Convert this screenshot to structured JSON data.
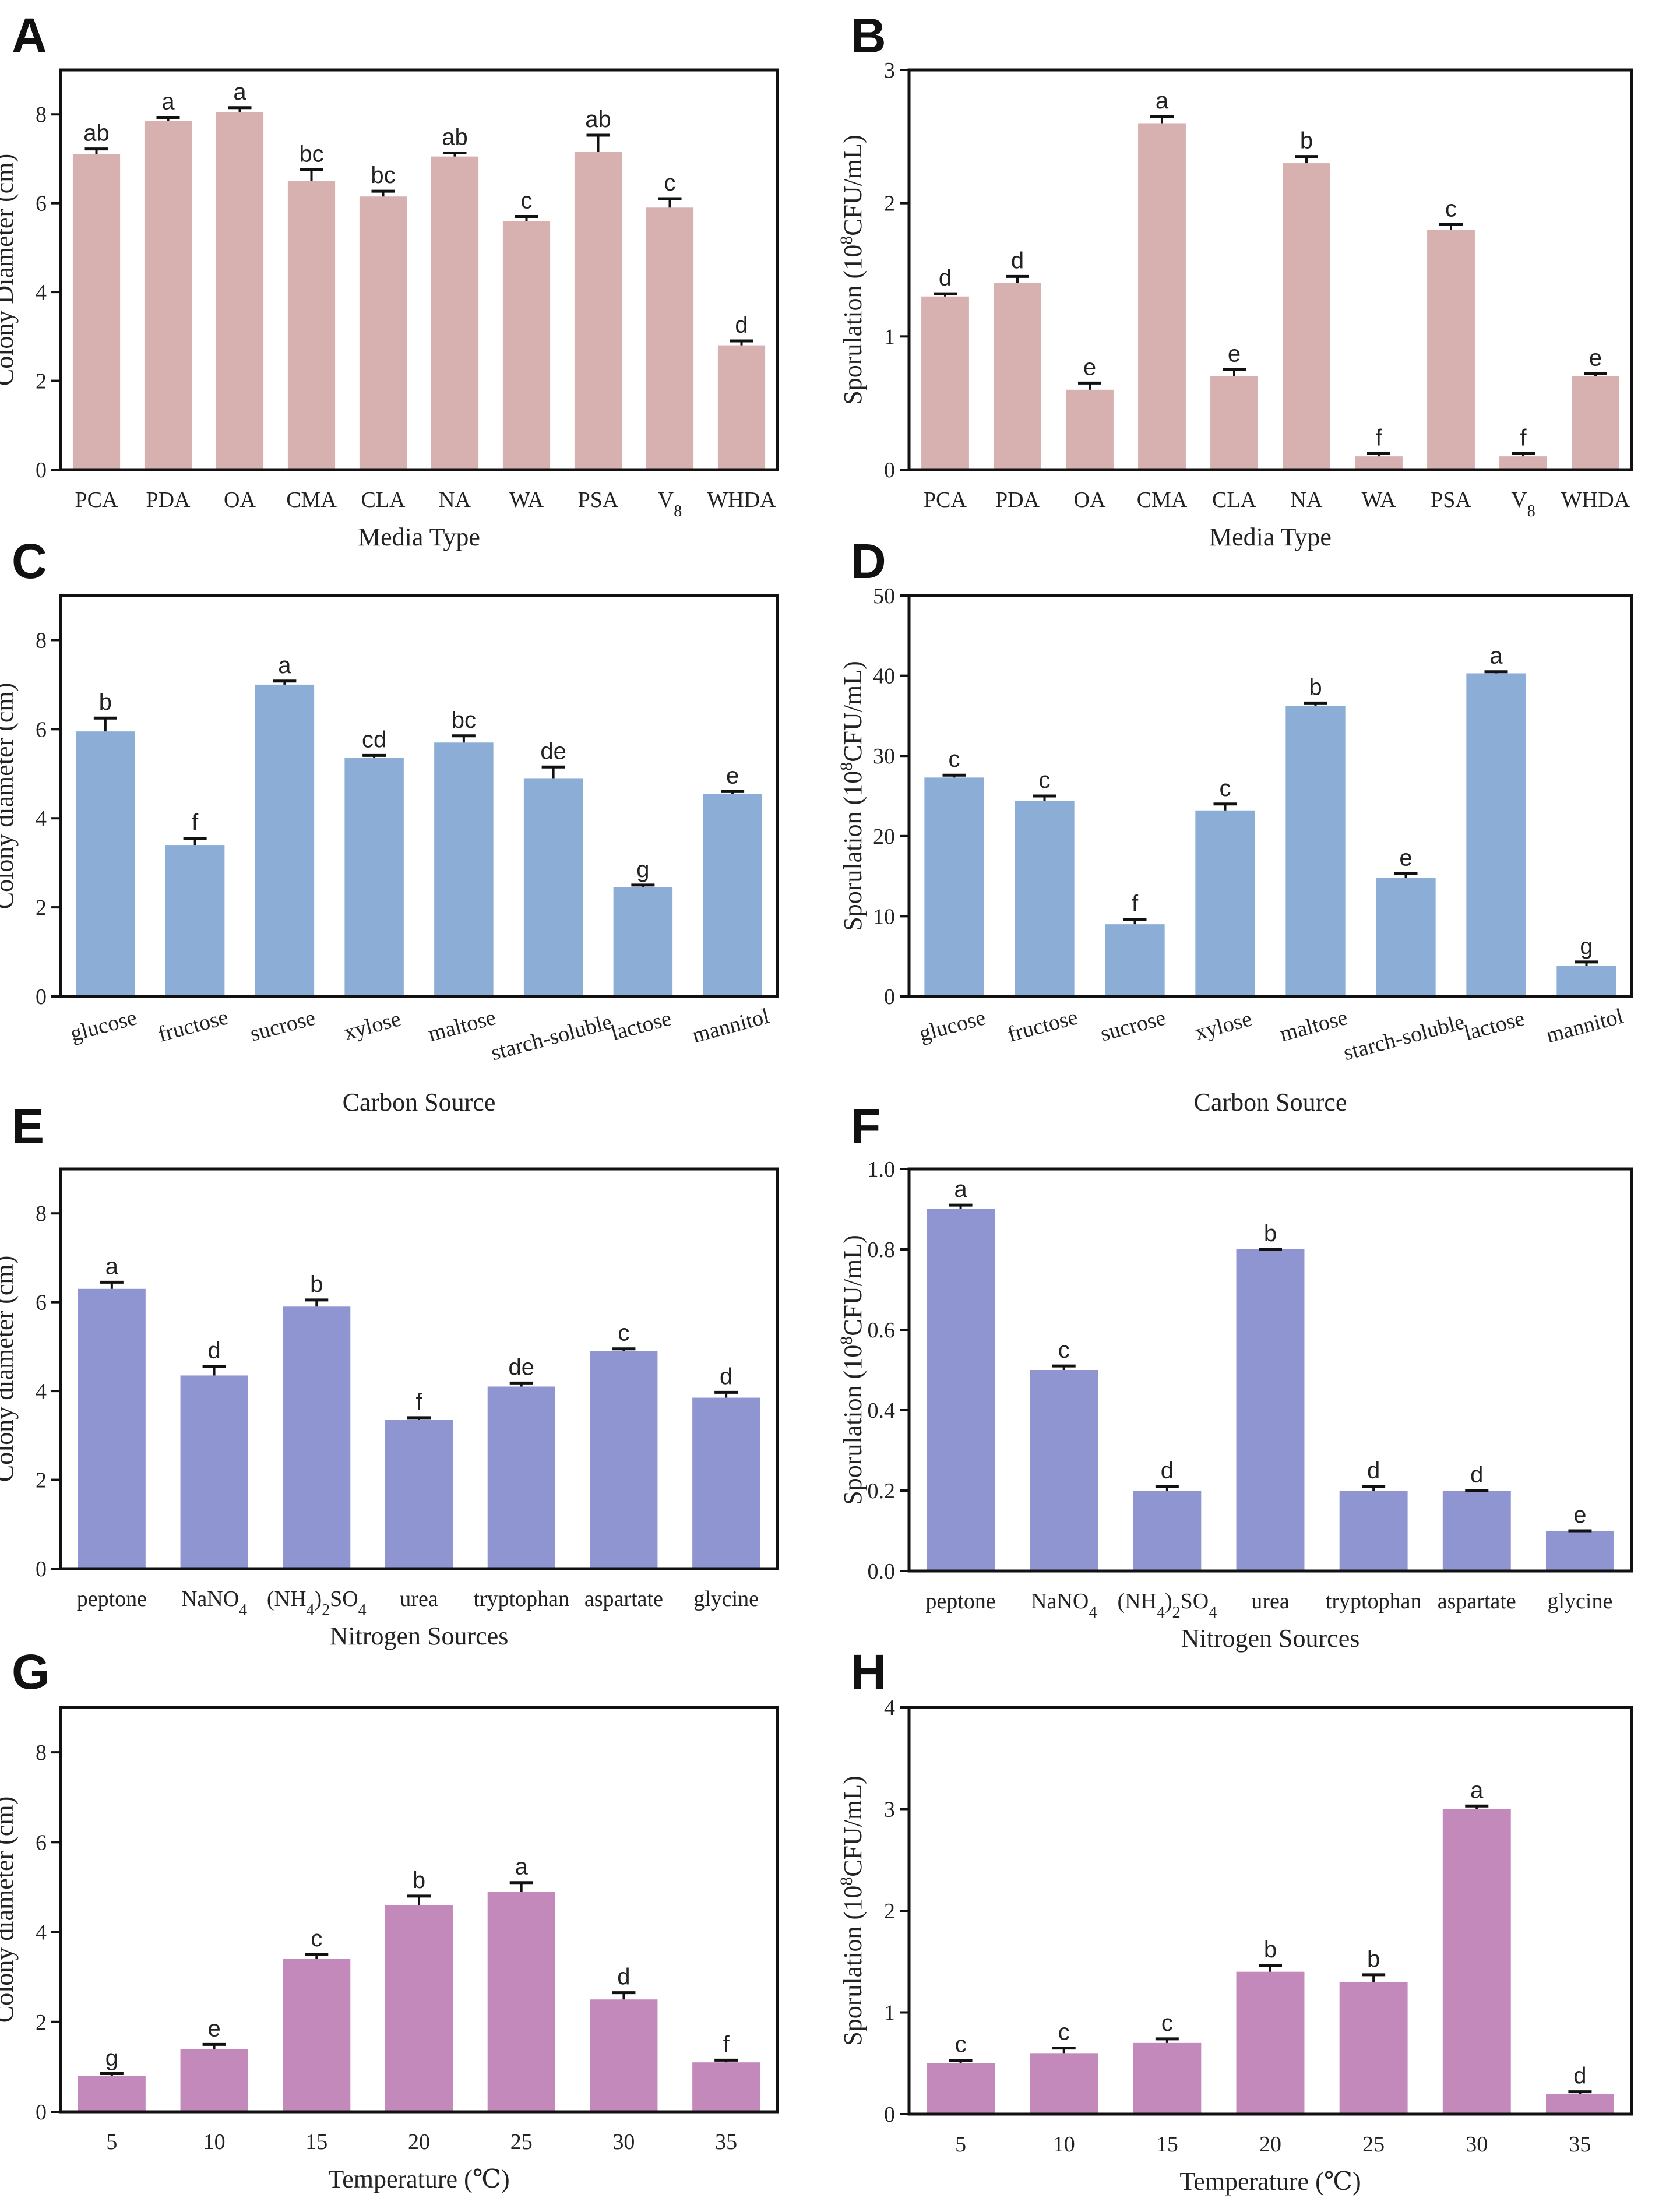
{
  "chart_data": [
    {
      "panel": "A",
      "type": "bar",
      "categories": [
        "PCA",
        "PDA",
        "OA",
        "CMA",
        "CLA",
        "NA",
        "WA",
        "PSA",
        "V8",
        "WHDA"
      ],
      "values": [
        7.1,
        7.85,
        8.05,
        6.5,
        6.15,
        7.05,
        5.6,
        7.15,
        5.9,
        2.8
      ],
      "errors": [
        0.12,
        0.08,
        0.1,
        0.25,
        0.12,
        0.08,
        0.1,
        0.38,
        0.2,
        0.1
      ],
      "letters": [
        "ab",
        "a",
        "a",
        "bc",
        "bc",
        "ab",
        "c",
        "ab",
        "c",
        "d"
      ],
      "xlabel": "Media Type",
      "ylabel": [
        "Colony Diameter (cm)"
      ],
      "ylim": [
        0,
        9
      ],
      "yticks": [
        0,
        2,
        4,
        6,
        8
      ],
      "color": "#d7b0b0",
      "rotate": false
    },
    {
      "panel": "B",
      "type": "bar",
      "categories": [
        "PCA",
        "PDA",
        "OA",
        "CMA",
        "CLA",
        "NA",
        "WA",
        "PSA",
        "V8",
        "WHDA"
      ],
      "values": [
        1.3,
        1.4,
        0.6,
        2.6,
        0.7,
        2.3,
        0.1,
        1.8,
        0.1,
        0.7
      ],
      "errors": [
        0.02,
        0.05,
        0.05,
        0.05,
        0.05,
        0.05,
        0.02,
        0.04,
        0.02,
        0.02
      ],
      "letters": [
        "d",
        "d",
        "e",
        "a",
        "e",
        "b",
        "f",
        "c",
        "f",
        "e"
      ],
      "xlabel": "Media Type",
      "ylabel": [
        "Sporulation  (10",
        "8",
        "CFU/mL)"
      ],
      "ylim": [
        0,
        3
      ],
      "yticks": [
        0,
        1,
        2,
        3
      ],
      "color": "#d7b0b0",
      "rotate": false
    },
    {
      "panel": "C",
      "type": "bar",
      "categories": [
        "glucose",
        "fructose",
        "sucrose",
        "xylose",
        "maltose",
        "starch-soluble",
        "lactose",
        "mannitol"
      ],
      "values": [
        5.95,
        3.4,
        7.0,
        5.35,
        5.7,
        4.9,
        2.45,
        4.55
      ],
      "errors": [
        0.3,
        0.15,
        0.08,
        0.06,
        0.15,
        0.25,
        0.05,
        0.05
      ],
      "letters": [
        "b",
        "f",
        "a",
        "cd",
        "bc",
        "de",
        "g",
        "e"
      ],
      "xlabel": "Carbon Source",
      "ylabel": [
        "Colony diameter (cm)"
      ],
      "ylim": [
        0,
        9
      ],
      "yticks": [
        0,
        2,
        4,
        6,
        8
      ],
      "color": "#8cadd5",
      "rotate": true
    },
    {
      "panel": "D",
      "type": "bar",
      "categories": [
        "glucose",
        "fructose",
        "sucrose",
        "xylose",
        "maltose",
        "starch-soluble",
        "lactose",
        "mannitol"
      ],
      "values": [
        27.3,
        24.4,
        9.0,
        23.2,
        36.2,
        14.8,
        40.3,
        3.8
      ],
      "errors": [
        0.3,
        0.6,
        0.6,
        0.8,
        0.4,
        0.5,
        0.2,
        0.5
      ],
      "letters": [
        "c",
        "c",
        "f",
        "c",
        "b",
        "e",
        "a",
        "g"
      ],
      "xlabel": "Carbon Source",
      "ylabel": [
        "Sporulation  (10",
        "8",
        "CFU/mL)"
      ],
      "ylim": [
        0,
        50
      ],
      "yticks": [
        0,
        10,
        20,
        30,
        40,
        50
      ],
      "color": "#8cadd5",
      "rotate": true
    },
    {
      "panel": "E",
      "type": "bar",
      "categories": [
        "peptone",
        "NaNO4",
        "(NH4)2SO4",
        "urea",
        "tryptophan",
        "aspartate",
        "glycine"
      ],
      "values": [
        6.3,
        4.35,
        5.9,
        3.35,
        4.1,
        4.9,
        3.85
      ],
      "errors": [
        0.15,
        0.2,
        0.15,
        0.05,
        0.08,
        0.05,
        0.12
      ],
      "letters": [
        "a",
        "d",
        "b",
        "f",
        "de",
        "c",
        "d"
      ],
      "xlabel": "Nitrogen Sources",
      "ylabel": [
        "Colony diameter (cm)"
      ],
      "ylim": [
        0,
        9
      ],
      "yticks": [
        0,
        2,
        4,
        6,
        8
      ],
      "color": "#8e95d1",
      "rotate": false
    },
    {
      "panel": "F",
      "type": "bar",
      "categories": [
        "peptone",
        "NaNO4",
        "(NH4)2SO4",
        "urea",
        "tryptophan",
        "aspartate",
        "glycine"
      ],
      "values": [
        0.9,
        0.5,
        0.2,
        0.8,
        0.2,
        0.2,
        0.1
      ],
      "errors": [
        0.01,
        0.01,
        0.01,
        0.0,
        0.01,
        0.0,
        0.0
      ],
      "letters": [
        "a",
        "c",
        "d",
        "b",
        "d",
        "d",
        "e"
      ],
      "xlabel": "Nitrogen Sources",
      "ylabel": [
        "Sporulation  (10",
        "8",
        "CFU/mL)"
      ],
      "ylim": [
        0,
        1.0
      ],
      "yticks": [
        0.0,
        0.2,
        0.4,
        0.6,
        0.8,
        1.0
      ],
      "ytick_labels": [
        "0.0",
        "0.2",
        "0.4",
        "0.6",
        "0.8",
        "1.0"
      ],
      "color": "#8e95d1",
      "rotate": false
    },
    {
      "panel": "G",
      "type": "bar",
      "categories": [
        "5",
        "10",
        "15",
        "20",
        "25",
        "30",
        "35"
      ],
      "values": [
        0.8,
        1.4,
        3.4,
        4.6,
        4.9,
        2.5,
        1.1
      ],
      "errors": [
        0.05,
        0.1,
        0.1,
        0.2,
        0.2,
        0.15,
        0.05
      ],
      "letters": [
        "g",
        "e",
        "c",
        "b",
        "a",
        "d",
        "f"
      ],
      "xlabel": "Temperature (℃)",
      "ylabel": [
        "Colony diameter (cm)"
      ],
      "ylim": [
        0,
        9
      ],
      "yticks": [
        0,
        2,
        4,
        6,
        8
      ],
      "color": "#c389bb",
      "rotate": false
    },
    {
      "panel": "H",
      "type": "bar",
      "categories": [
        "5",
        "10",
        "15",
        "20",
        "25",
        "30",
        "35"
      ],
      "values": [
        0.5,
        0.6,
        0.7,
        1.4,
        1.3,
        3.0,
        0.2
      ],
      "errors": [
        0.03,
        0.05,
        0.04,
        0.06,
        0.07,
        0.03,
        0.02
      ],
      "letters": [
        "c",
        "c",
        "c",
        "b",
        "b",
        "a",
        "d"
      ],
      "xlabel": "Temperature (℃)",
      "ylabel": [
        "Sporulation  (10",
        "8",
        "CFU/mL)"
      ],
      "ylim": [
        0,
        4
      ],
      "yticks": [
        0,
        1,
        2,
        3,
        4
      ],
      "color": "#c389bb",
      "rotate": false
    }
  ]
}
